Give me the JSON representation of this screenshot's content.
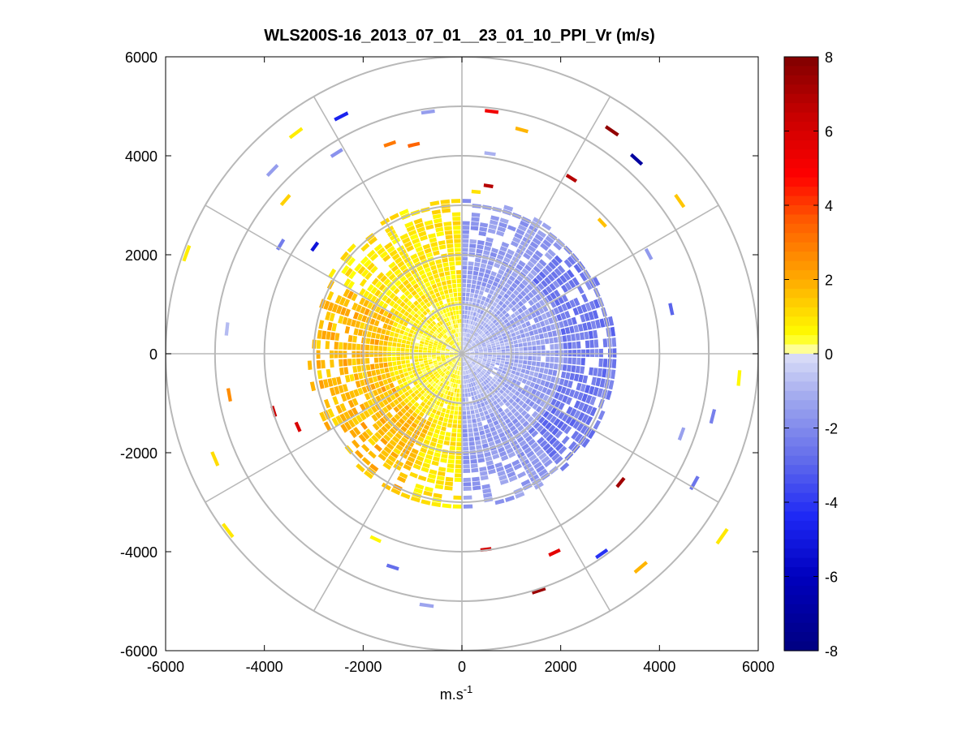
{
  "chart_data": {
    "type": "heatmap",
    "subtype": "polar-ppi",
    "title": "WLS200S-16_2013_07_01__23_01_10_PPI_Vr (m/s)",
    "xlabel": "m.s",
    "xlabel_superscript": "-1",
    "ylabel": "",
    "xlim": [
      -6000,
      6000
    ],
    "ylim": [
      -6000,
      6000
    ],
    "xticks": [
      -6000,
      -4000,
      -2000,
      0,
      2000,
      4000,
      6000
    ],
    "yticks": [
      6000,
      4000,
      2000,
      0,
      -2000,
      -4000,
      -6000
    ],
    "xtick_labels": [
      "-6000",
      "-4000",
      "-2000",
      "0",
      "2000",
      "4000",
      "6000"
    ],
    "ytick_labels": [
      "6000",
      "4000",
      "2000",
      "0",
      "-2000",
      "-4000",
      "-6000"
    ],
    "range_rings": [
      1000,
      2000,
      3000,
      4000,
      5000,
      6000
    ],
    "spokes_deg": [
      0,
      30,
      60,
      90,
      120,
      150,
      180,
      210,
      240,
      270,
      300,
      330
    ],
    "colorbar": {
      "min": -8,
      "max": 8,
      "ticks": [
        8,
        6,
        4,
        2,
        0,
        -2,
        -4,
        -6,
        -8
      ],
      "tick_labels": [
        "8",
        "6",
        "4",
        "2",
        "0",
        "-2",
        "-4",
        "-6",
        "-8"
      ]
    },
    "radial_velocity_field": {
      "units": "m/s",
      "description_note": "approximate radial velocity by azimuth (compass degrees) and range (m)",
      "dense_coverage_max_range_m": 3000,
      "approaching_sector_deg": [
        0,
        180
      ],
      "receding_sector_deg": [
        180,
        360
      ],
      "approaching_typical_value": -1.6,
      "receding_typical_value": 0.9
    },
    "sparse_returns": [
      {
        "az": 7,
        "range": 4900,
        "value": 5.2
      },
      {
        "az": 15,
        "range": 4650,
        "value": 1.8
      },
      {
        "az": 34,
        "range": 5400,
        "value": 7.6
      },
      {
        "az": 42,
        "range": 5250,
        "value": -7.0
      },
      {
        "az": 55,
        "range": 5350,
        "value": 1.5
      },
      {
        "az": 32,
        "range": 4150,
        "value": 6.8
      },
      {
        "az": 47,
        "range": 3850,
        "value": 1.6
      },
      {
        "az": 62,
        "range": 4250,
        "value": -1.6
      },
      {
        "az": 78,
        "range": 4300,
        "value": -3.0
      },
      {
        "az": 95,
        "range": 5600,
        "value": 0.6
      },
      {
        "az": 104,
        "range": 5200,
        "value": -2.3
      },
      {
        "az": 110,
        "range": 4700,
        "value": -1.4
      },
      {
        "az": 119,
        "range": 5350,
        "value": -2.6
      },
      {
        "az": 129,
        "range": 4100,
        "value": 7.3
      },
      {
        "az": 125,
        "range": 6400,
        "value": 0.9
      },
      {
        "az": 140,
        "range": 5600,
        "value": 1.8
      },
      {
        "az": 145,
        "range": 4900,
        "value": -4.2
      },
      {
        "az": 155,
        "range": 4400,
        "value": 5.6
      },
      {
        "az": 162,
        "range": 5000,
        "value": 7.4
      },
      {
        "az": 173,
        "range": 3950,
        "value": 6.0
      },
      {
        "az": 188,
        "range": 5100,
        "value": -1.3
      },
      {
        "az": 198,
        "range": 4500,
        "value": -2.8
      },
      {
        "az": 205,
        "range": 4100,
        "value": 0.6
      },
      {
        "az": 233,
        "range": 5900,
        "value": 0.9
      },
      {
        "az": 247,
        "range": 5400,
        "value": 1.1
      },
      {
        "az": 246,
        "range": 3600,
        "value": 5.9
      },
      {
        "az": 253,
        "range": 3950,
        "value": 6.3
      },
      {
        "az": 260,
        "range": 4750,
        "value": 2.6
      },
      {
        "az": 276,
        "range": 4750,
        "value": -0.8
      },
      {
        "az": 290,
        "range": 5900,
        "value": 0.8
      },
      {
        "az": 301,
        "range": 4250,
        "value": -2.4
      },
      {
        "az": 306,
        "range": 3650,
        "value": -5.2
      },
      {
        "az": 314,
        "range": 5300,
        "value": -1.5
      },
      {
        "az": 323,
        "range": 5550,
        "value": 0.8
      },
      {
        "az": 328,
        "range": 4750,
        "value": -1.8
      },
      {
        "az": 333,
        "range": 5350,
        "value": -4.6
      },
      {
        "az": 341,
        "range": 4450,
        "value": 3.0
      },
      {
        "az": 347,
        "range": 4300,
        "value": 3.4
      },
      {
        "az": 352,
        "range": 4900,
        "value": -1.5
      },
      {
        "az": 311,
        "range": 4700,
        "value": 1.3
      },
      {
        "az": 8,
        "range": 4050,
        "value": -1.0
      },
      {
        "az": 9,
        "range": 3400,
        "value": 6.8
      },
      {
        "az": 5,
        "range": 3250,
        "value": 1.0
      }
    ]
  }
}
